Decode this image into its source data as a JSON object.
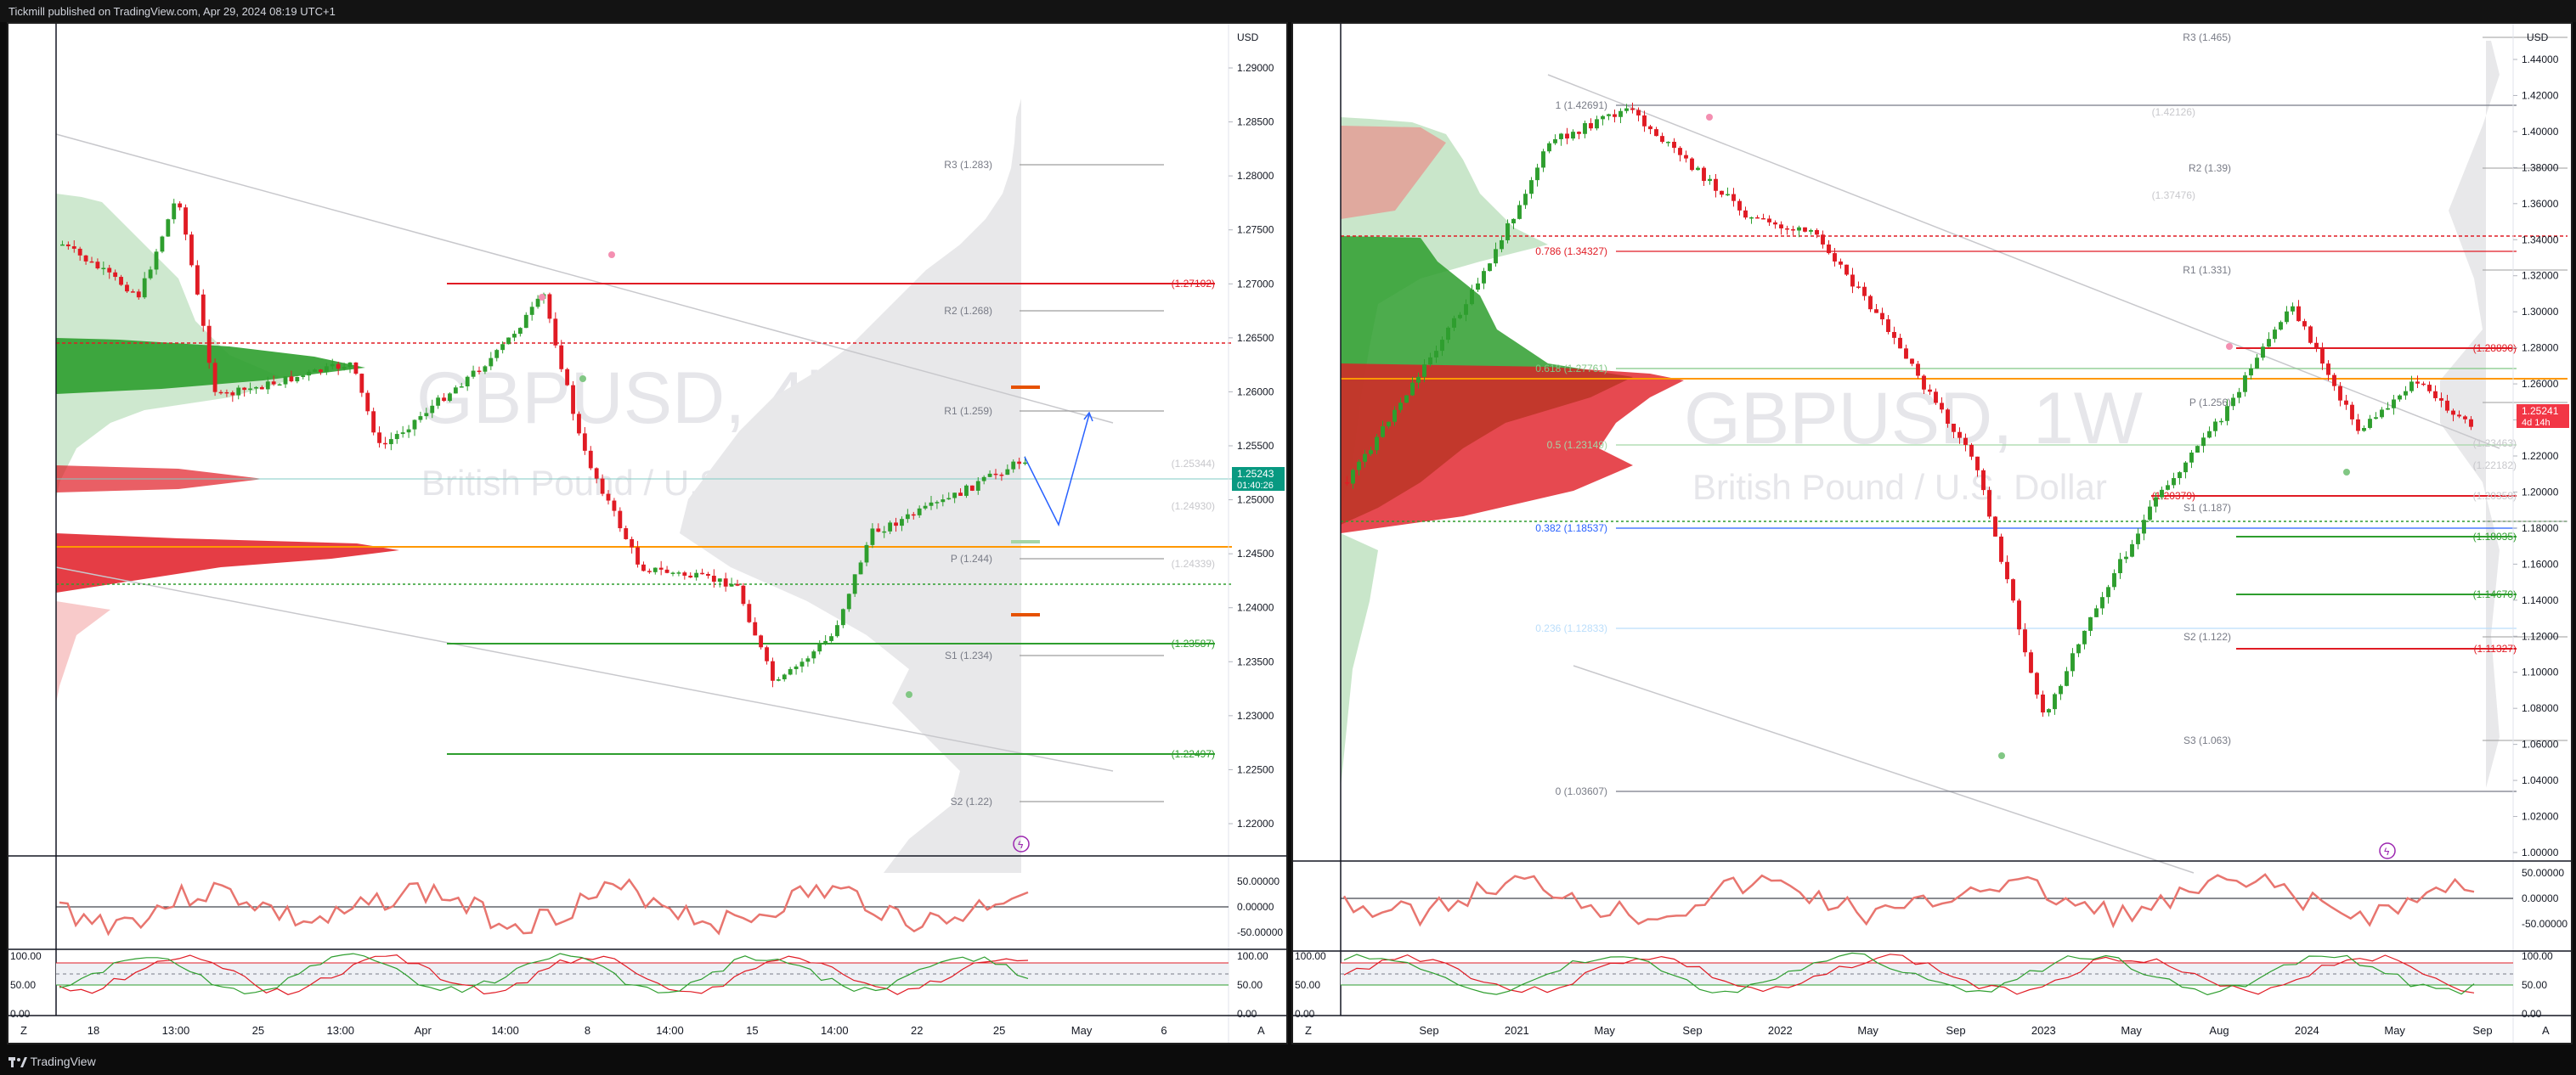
{
  "header": {
    "publisher_text": "Tickmill published on TradingView.com, Apr 29, 2024 08:19 UTC+1"
  },
  "footer": {
    "brand": "TradingView",
    "brand_icon": "tradingview-logo-icon"
  },
  "colors": {
    "bull": "#089981",
    "bear": "#f23645",
    "candle_green": "#2e9e2e",
    "candle_red": "#e01b24",
    "hist_green": "#4caf50",
    "hist_red": "#f44336",
    "orange_line": "#ff9800",
    "blue_line": "#2962ff"
  },
  "left_chart": {
    "watermark_symbol": "GBPUSD, 4h",
    "watermark_name": "British Pound / U.S. Dollar",
    "currency": "USD",
    "price_ticks": [
      "1.29000",
      "1.28500",
      "1.28000",
      "1.27500",
      "1.27000",
      "1.26500",
      "1.26000",
      "1.25500",
      "1.25000",
      "1.24500",
      "1.24000",
      "1.23500",
      "1.23000",
      "1.22500",
      "1.22000"
    ],
    "last_price": "1.25243",
    "countdown": "01:40:26",
    "levels": [
      {
        "label": "R3 (1.283)"
      },
      {
        "label": "R2 (1.268)"
      },
      {
        "label": "R1 (1.259)"
      },
      {
        "label": "P (1.244)"
      },
      {
        "label": "S1 (1.234)"
      },
      {
        "label": "S2 (1.22)"
      },
      {
        "label": "(1.27102)"
      },
      {
        "label": "(1.23587)"
      },
      {
        "label": "(1.22497)"
      },
      {
        "label": "(1.25344)"
      },
      {
        "label": "(1.24930)"
      },
      {
        "label": "(1.24339)"
      }
    ],
    "time_ticks": [
      "18",
      "13:00",
      "25",
      "13:00",
      "Apr",
      "14:00",
      "8",
      "14:00",
      "15",
      "14:00",
      "22",
      "25",
      "May",
      "6"
    ],
    "osc_ticks": [
      "50.00000",
      "0.00000",
      "-50.00000"
    ],
    "stoch_ticks": [
      "100.00",
      "50.00",
      "0.00"
    ],
    "axis_buttons": [
      "Z",
      "A"
    ]
  },
  "right_chart": {
    "watermark_symbol": "GBPUSD, 1W",
    "watermark_name": "British Pound / U.S. Dollar",
    "currency": "USD",
    "price_ticks": [
      "1.44000",
      "1.42000",
      "1.40000",
      "1.38000",
      "1.36000",
      "1.34000",
      "1.32000",
      "1.30000",
      "1.28000",
      "1.26000",
      "1.24000",
      "1.22000",
      "1.20000",
      "1.18000",
      "1.16000",
      "1.14000",
      "1.12000",
      "1.10000",
      "1.08000",
      "1.06000",
      "1.04000",
      "1.02000",
      "1.00000"
    ],
    "last_price": "1.25241",
    "countdown": "4d 14h",
    "fib_levels": [
      {
        "label": "1 (1.42691)"
      },
      {
        "label": "0.786 (1.34327)"
      },
      {
        "label": "0.618 (1.27761)"
      },
      {
        "label": "0.5 (1.23149)"
      },
      {
        "label": "0.382 (1.18537)"
      },
      {
        "label": "0.236 (1.12833)"
      },
      {
        "label": "0 (1.03607)"
      }
    ],
    "pivot_levels": [
      {
        "label": "R3 (1.465)"
      },
      {
        "label": "R2 (1.39)"
      },
      {
        "label": "R1 (1.331)"
      },
      {
        "label": "P (1.256)"
      },
      {
        "label": "S1 (1.187)"
      },
      {
        "label": "S2 (1.122)"
      },
      {
        "label": "S3 (1.063)"
      }
    ],
    "other_levels": [
      {
        "label": "(1.42126)"
      },
      {
        "label": "(1.37476)"
      },
      {
        "label": "(1.28890)"
      },
      {
        "label": "(1.23463)"
      },
      {
        "label": "(1.22182)"
      },
      {
        "label": "(1.20379)"
      },
      {
        "label": "(1.20358)"
      },
      {
        "label": "(1.18035)"
      },
      {
        "label": "(1.14670)"
      },
      {
        "label": "(1.11327)"
      }
    ],
    "time_ticks": [
      "Sep",
      "2021",
      "May",
      "Sep",
      "2022",
      "May",
      "Sep",
      "2023",
      "May",
      "Aug",
      "2024",
      "May",
      "Sep"
    ],
    "osc_ticks": [
      "50.00000",
      "0.00000",
      "-50.00000"
    ],
    "stoch_ticks": [
      "100.00",
      "50.00",
      "0.00"
    ],
    "axis_buttons": [
      "Z",
      "A"
    ]
  }
}
